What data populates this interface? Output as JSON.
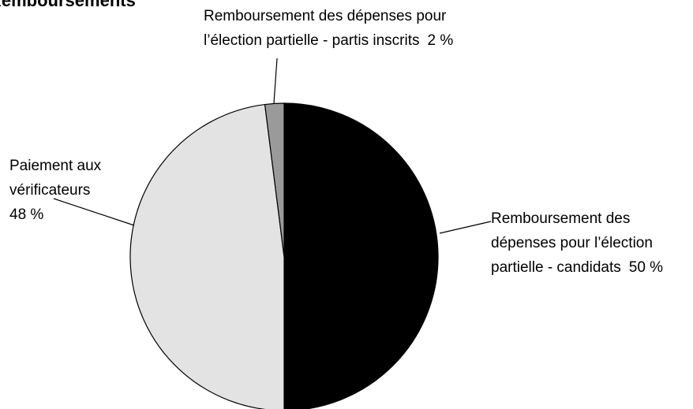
{
  "chart_data": {
    "type": "pie",
    "title": "Remboursements",
    "categories": [
      "Remboursement des dépenses pour l’élection partielle - candidats",
      "Paiement aux vérificateurs",
      "Remboursement des dépenses pour l’élection partielle - partis inscrits"
    ],
    "values": [
      50,
      48,
      2
    ],
    "value_labels": [
      "50 %",
      "48 %",
      "2 %"
    ],
    "colors": [
      "#000000",
      "#e3e3e3",
      "#9a9a9a"
    ]
  }
}
